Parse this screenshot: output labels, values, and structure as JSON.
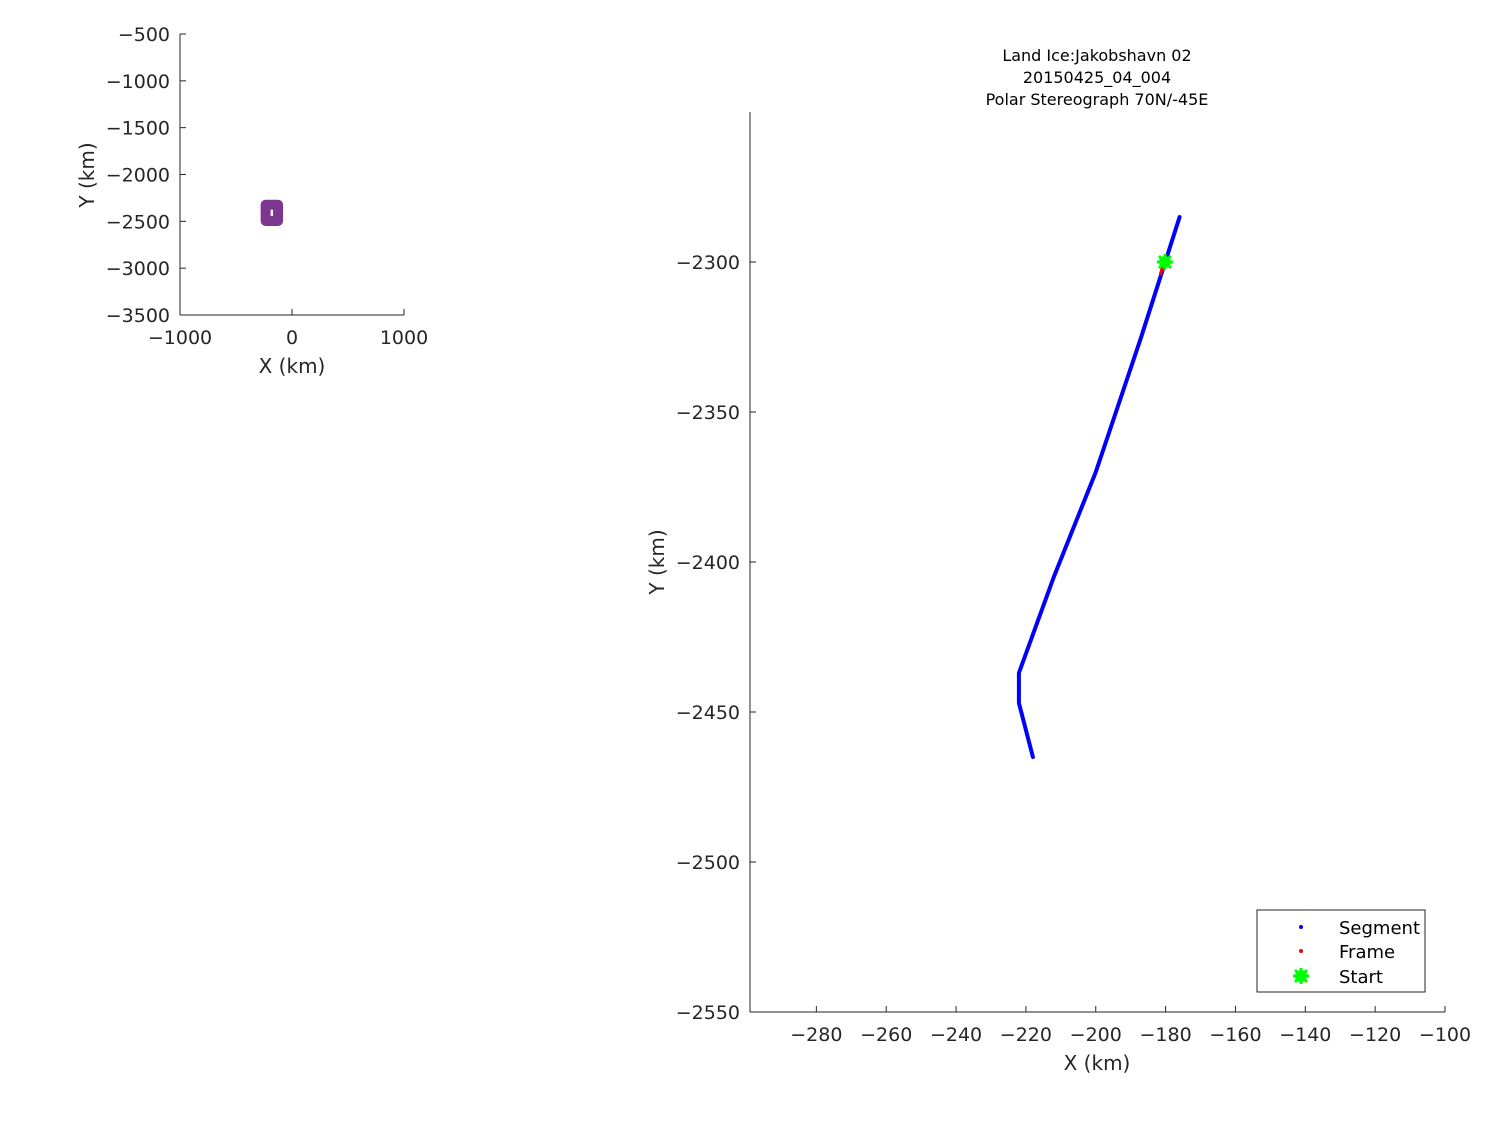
{
  "colors": {
    "segment": "#0000ff",
    "frame": "#ff0000",
    "start": "#00ff00",
    "overview": "#7e3791",
    "axis": "#262626"
  },
  "chart_data": [
    {
      "type": "scatter",
      "title": "",
      "xlabel": "X (km)",
      "ylabel": "Y (km)",
      "xlim": [
        -1000,
        1000
      ],
      "ylim": [
        -3500,
        -500
      ],
      "xticks": [
        -1000,
        0,
        1000
      ],
      "yticks": [
        -500,
        -1000,
        -1500,
        -2000,
        -2500,
        -3000,
        -3500
      ],
      "xtick_labels": [
        "−1000",
        "0",
        "1000"
      ],
      "ytick_labels": [
        "−500",
        "−1000",
        "−1500",
        "−2000",
        "−2500",
        "−3000",
        "−3500"
      ],
      "grid": false,
      "series": [
        {
          "marker_shape": "square-outline",
          "color": "#7e3791",
          "box": {
            "x": [
              -280,
              -80
            ],
            "y": [
              -2550,
              -2270
            ]
          }
        }
      ]
    },
    {
      "type": "line",
      "title": [
        "Land Ice:Jakobshavn 02",
        "20150425_04_004",
        "Polar Stereograph 70N/-45E"
      ],
      "xlabel": "X (km)",
      "ylabel": "Y (km)",
      "xlim": [
        -299,
        -100
      ],
      "ylim": [
        -2550,
        -2250
      ],
      "xticks": [
        -280,
        -260,
        -240,
        -220,
        -200,
        -180,
        -160,
        -140,
        -120,
        -100
      ],
      "yticks": [
        -2300,
        -2350,
        -2400,
        -2450,
        -2500,
        -2550
      ],
      "xtick_labels": [
        "−280",
        "−260",
        "−240",
        "−220",
        "−200",
        "−180",
        "−160",
        "−140",
        "−120",
        "−100"
      ],
      "ytick_labels": [
        "−2300",
        "−2350",
        "−2400",
        "−2450",
        "−2500",
        "−2550"
      ],
      "grid": false,
      "legend_position": "bottom-right",
      "series": [
        {
          "name": "Segment",
          "color": "#0000ff",
          "x": [
            -176,
            -187,
            -200,
            -212,
            -222,
            -222,
            -218
          ],
          "y": [
            -2285,
            -2325,
            -2370,
            -2405,
            -2437,
            -2447,
            -2465
          ]
        },
        {
          "name": "Frame",
          "color": "#ff0000",
          "x": [
            -180.5,
            -181.5
          ],
          "y": [
            -2300,
            -2304
          ]
        },
        {
          "name": "Start",
          "color": "#00ff00",
          "x": [
            -180.2
          ],
          "y": [
            -2300
          ]
        }
      ]
    }
  ]
}
